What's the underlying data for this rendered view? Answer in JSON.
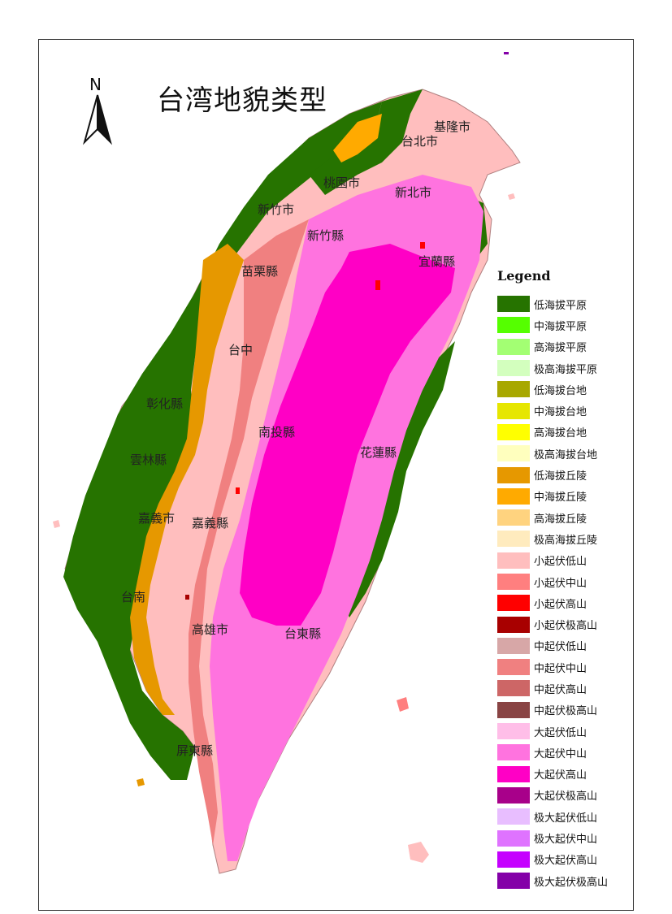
{
  "title": "台湾地貌类型",
  "north_label": "N",
  "map_labels": [
    {
      "name": "city-jilong",
      "text": "基隆市"
    },
    {
      "name": "city-taibei",
      "text": "台北市"
    },
    {
      "name": "city-taoyuan",
      "text": "桃園市"
    },
    {
      "name": "city-xinbei",
      "text": "新北市"
    },
    {
      "name": "city-xinzhu-shi",
      "text": "新竹市"
    },
    {
      "name": "city-xinzhu-xian",
      "text": "新竹縣"
    },
    {
      "name": "city-yilan",
      "text": "宜蘭縣"
    },
    {
      "name": "city-miaoli",
      "text": "苗栗縣"
    },
    {
      "name": "city-taizhong",
      "text": "台中"
    },
    {
      "name": "city-zhanghua",
      "text": "彰化縣"
    },
    {
      "name": "city-nantou",
      "text": "南投縣"
    },
    {
      "name": "city-hualian",
      "text": "花蓮縣"
    },
    {
      "name": "city-yunlin",
      "text": "雲林縣"
    },
    {
      "name": "city-jiayi-shi",
      "text": "嘉義市"
    },
    {
      "name": "city-jiayi-xian",
      "text": "嘉義縣"
    },
    {
      "name": "city-tainan",
      "text": "台南"
    },
    {
      "name": "city-gaoxiong",
      "text": "高雄市"
    },
    {
      "name": "city-taidong",
      "text": "台東縣"
    },
    {
      "name": "city-pingdong",
      "text": "屏東縣"
    }
  ],
  "legend": {
    "title": "Legend",
    "items": [
      {
        "label": "低海拔平原",
        "color": "#267300"
      },
      {
        "label": "中海拔平原",
        "color": "#55ff00"
      },
      {
        "label": "高海拔平原",
        "color": "#a3ff73"
      },
      {
        "label": "极高海拔平原",
        "color": "#d3ffbe"
      },
      {
        "label": "低海拔台地",
        "color": "#a8a800"
      },
      {
        "label": "中海拔台地",
        "color": "#e6e600"
      },
      {
        "label": "高海拔台地",
        "color": "#ffff00"
      },
      {
        "label": "极高海拔台地",
        "color": "#ffffbe"
      },
      {
        "label": "低海拔丘陵",
        "color": "#e69800"
      },
      {
        "label": "中海拔丘陵",
        "color": "#ffaa00"
      },
      {
        "label": "高海拔丘陵",
        "color": "#ffd37f"
      },
      {
        "label": "极高海拔丘陵",
        "color": "#ffebbe"
      },
      {
        "label": "小起伏低山",
        "color": "#ffbebe"
      },
      {
        "label": "小起伏中山",
        "color": "#ff7f7f"
      },
      {
        "label": "小起伏高山",
        "color": "#ff0000"
      },
      {
        "label": "小起伏极高山",
        "color": "#a80000"
      },
      {
        "label": "中起伏低山",
        "color": "#d7a7a7"
      },
      {
        "label": "中起伏中山",
        "color": "#f08080"
      },
      {
        "label": "中起伏高山",
        "color": "#cd6666"
      },
      {
        "label": "中起伏极高山",
        "color": "#894444"
      },
      {
        "label": "大起伏低山",
        "color": "#ffbee8"
      },
      {
        "label": "大起伏中山",
        "color": "#ff73df"
      },
      {
        "label": "大起伏高山",
        "color": "#ff00c5"
      },
      {
        "label": "大起伏极高山",
        "color": "#a8008a"
      },
      {
        "label": "极大起伏低山",
        "color": "#e8beff"
      },
      {
        "label": "极大起伏中山",
        "color": "#df73ff"
      },
      {
        "label": "极大起伏高山",
        "color": "#c500ff"
      },
      {
        "label": "极大起伏极高山",
        "color": "#8400a8"
      }
    ]
  }
}
